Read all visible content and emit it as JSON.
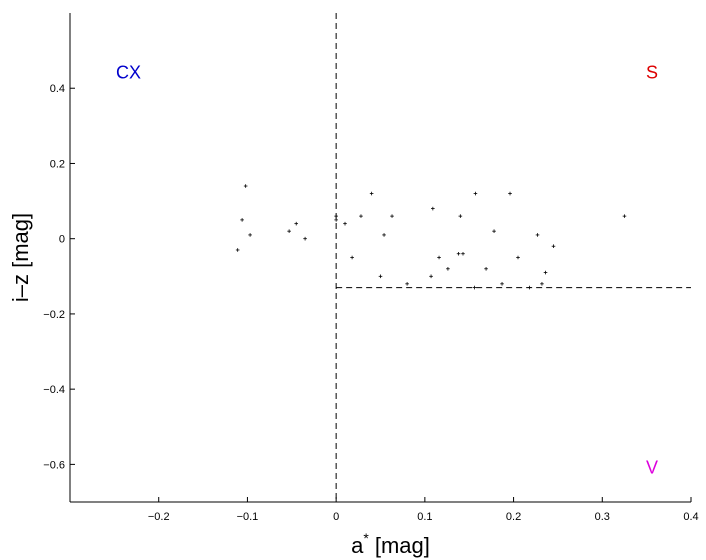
{
  "chart_data": {
    "type": "scatter",
    "title": "",
    "xlabel": "a",
    "xlabel_superscript": "*",
    "xlabel_unit": "[mag]",
    "ylabel": "i–z [mag]",
    "xlim": [
      -0.3,
      0.4
    ],
    "ylim": [
      -0.7,
      0.6
    ],
    "xticks": [
      {
        "value": -0.2,
        "label": "−0.2"
      },
      {
        "value": -0.1,
        "label": "−0.1"
      },
      {
        "value": 0,
        "label": "0"
      },
      {
        "value": 0.1,
        "label": "0.1"
      },
      {
        "value": 0.2,
        "label": "0.2"
      },
      {
        "value": 0.3,
        "label": "0.3"
      },
      {
        "value": 0.4,
        "label": "0.4"
      }
    ],
    "yticks": [
      {
        "value": 0.4,
        "label": "0.4"
      },
      {
        "value": 0.2,
        "label": "0.2"
      },
      {
        "value": 0,
        "label": "0"
      },
      {
        "value": -0.2,
        "label": "−0.2"
      },
      {
        "value": -0.4,
        "label": "−0.4"
      },
      {
        "value": -0.6,
        "label": "−0.6"
      }
    ],
    "grid": false,
    "reference_lines": [
      {
        "orientation": "vertical",
        "x": 0,
        "y_from": -0.7,
        "y_to": 0.6,
        "style": "dashed"
      },
      {
        "orientation": "horizontal",
        "y": -0.13,
        "x_from": 0,
        "x_to": 0.4,
        "style": "dashed"
      }
    ],
    "region_labels": [
      {
        "text": "CX",
        "x": -0.234,
        "y": 0.445,
        "color": "#0000cc"
      },
      {
        "text": "S",
        "x": 0.356,
        "y": 0.445,
        "color": "#dd0000"
      },
      {
        "text": "V",
        "x": 0.356,
        "y": -0.605,
        "color": "#dd00dd"
      }
    ],
    "series": [
      {
        "marker": "+",
        "color": "#000000",
        "points": [
          {
            "x": -0.111,
            "y": -0.03
          },
          {
            "x": -0.106,
            "y": 0.05
          },
          {
            "x": -0.102,
            "y": 0.14
          },
          {
            "x": -0.097,
            "y": 0.01
          },
          {
            "x": -0.053,
            "y": 0.02
          },
          {
            "x": -0.045,
            "y": 0.04
          },
          {
            "x": -0.035,
            "y": 0.0
          },
          {
            "x": 0.0,
            "y": 0.05
          },
          {
            "x": 0.0,
            "y": 0.06
          },
          {
            "x": 0.01,
            "y": 0.04
          },
          {
            "x": 0.018,
            "y": -0.05
          },
          {
            "x": 0.028,
            "y": 0.06
          },
          {
            "x": 0.04,
            "y": 0.12
          },
          {
            "x": 0.05,
            "y": -0.1
          },
          {
            "x": 0.054,
            "y": 0.01
          },
          {
            "x": 0.063,
            "y": 0.06
          },
          {
            "x": 0.08,
            "y": -0.12
          },
          {
            "x": 0.107,
            "y": -0.1
          },
          {
            "x": 0.109,
            "y": 0.08
          },
          {
            "x": 0.116,
            "y": -0.05
          },
          {
            "x": 0.126,
            "y": -0.08
          },
          {
            "x": 0.138,
            "y": -0.04
          },
          {
            "x": 0.14,
            "y": 0.06
          },
          {
            "x": 0.143,
            "y": -0.04
          },
          {
            "x": 0.156,
            "y": -0.13
          },
          {
            "x": 0.157,
            "y": 0.12
          },
          {
            "x": 0.169,
            "y": -0.08
          },
          {
            "x": 0.178,
            "y": 0.02
          },
          {
            "x": 0.187,
            "y": -0.12
          },
          {
            "x": 0.196,
            "y": 0.12
          },
          {
            "x": 0.205,
            "y": -0.05
          },
          {
            "x": 0.218,
            "y": -0.13
          },
          {
            "x": 0.227,
            "y": 0.01
          },
          {
            "x": 0.232,
            "y": -0.12
          },
          {
            "x": 0.236,
            "y": -0.09
          },
          {
            "x": 0.245,
            "y": -0.02
          },
          {
            "x": 0.325,
            "y": 0.06
          }
        ]
      }
    ]
  }
}
